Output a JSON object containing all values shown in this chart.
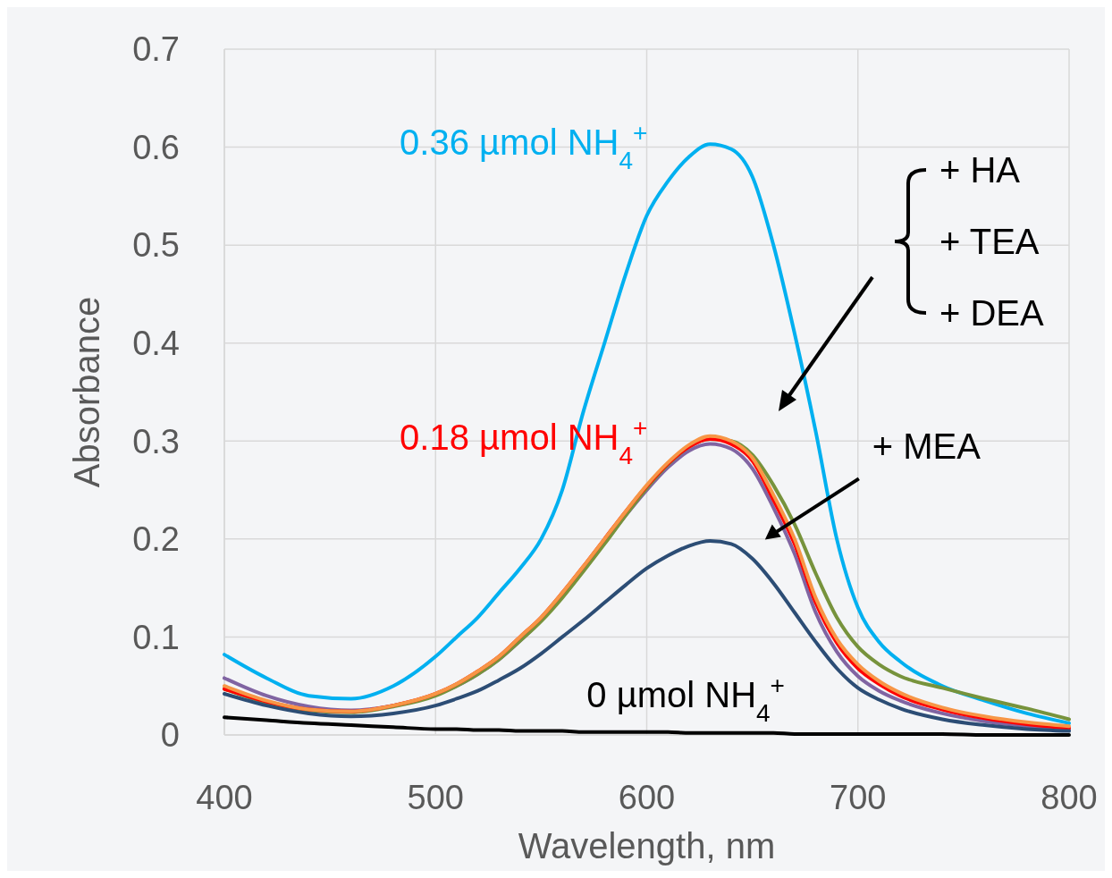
{
  "chart_data": {
    "type": "line",
    "xlabel": "Wavelength, nm",
    "ylabel": "Absorbance",
    "x": [
      400,
      420,
      440,
      460,
      480,
      500,
      510,
      520,
      530,
      540,
      550,
      560,
      570,
      580,
      590,
      600,
      610,
      620,
      630,
      640,
      650,
      660,
      670,
      680,
      690,
      700,
      710,
      720,
      740,
      760,
      780,
      800
    ],
    "series": [
      {
        "name": "0.36 µmol NH$_{4}$$^{+}$",
        "color": "#00b0f0",
        "values": [
          0.082,
          0.058,
          0.04,
          0.037,
          0.05,
          0.08,
          0.1,
          0.12,
          0.145,
          0.17,
          0.2,
          0.25,
          0.33,
          0.4,
          0.47,
          0.53,
          0.565,
          0.59,
          0.603,
          0.598,
          0.57,
          0.5,
          0.41,
          0.31,
          0.2,
          0.13,
          0.095,
          0.075,
          0.05,
          0.035,
          0.022,
          0.012
        ]
      },
      {
        "color": "#8064a2",
        "values": [
          0.058,
          0.04,
          0.029,
          0.025,
          0.03,
          0.041,
          0.05,
          0.062,
          0.077,
          0.096,
          0.117,
          0.141,
          0.168,
          0.196,
          0.224,
          0.25,
          0.273,
          0.29,
          0.297,
          0.292,
          0.272,
          0.232,
          0.185,
          0.125,
          0.085,
          0.06,
          0.045,
          0.035,
          0.022,
          0.014,
          0.009,
          0.005
        ]
      },
      {
        "color": "#77933c",
        "values": [
          0.047,
          0.033,
          0.025,
          0.023,
          0.029,
          0.04,
          0.05,
          0.062,
          0.077,
          0.096,
          0.116,
          0.14,
          0.167,
          0.195,
          0.224,
          0.252,
          0.276,
          0.294,
          0.302,
          0.3,
          0.286,
          0.255,
          0.215,
          0.165,
          0.12,
          0.09,
          0.072,
          0.06,
          0.048,
          0.037,
          0.027,
          0.016
        ]
      },
      {
        "name": "0.18 µmol NH$_{4}$$^{+}$",
        "color": "#ff0000",
        "values": [
          0.047,
          0.034,
          0.026,
          0.024,
          0.03,
          0.042,
          0.052,
          0.065,
          0.08,
          0.1,
          0.12,
          0.145,
          0.172,
          0.2,
          0.228,
          0.254,
          0.277,
          0.294,
          0.302,
          0.297,
          0.28,
          0.24,
          0.195,
          0.135,
          0.094,
          0.068,
          0.052,
          0.04,
          0.026,
          0.017,
          0.011,
          0.007
        ]
      },
      {
        "color": "#f79646",
        "values": [
          0.05,
          0.035,
          0.026,
          0.024,
          0.03,
          0.042,
          0.052,
          0.065,
          0.08,
          0.1,
          0.12,
          0.145,
          0.172,
          0.2,
          0.228,
          0.255,
          0.278,
          0.296,
          0.305,
          0.3,
          0.283,
          0.245,
          0.2,
          0.14,
          0.098,
          0.072,
          0.055,
          0.043,
          0.028,
          0.019,
          0.013,
          0.009
        ]
      },
      {
        "color": "#2c4d75",
        "values": [
          0.042,
          0.03,
          0.022,
          0.019,
          0.022,
          0.03,
          0.037,
          0.045,
          0.056,
          0.068,
          0.083,
          0.1,
          0.117,
          0.135,
          0.153,
          0.17,
          0.183,
          0.193,
          0.198,
          0.195,
          0.18,
          0.155,
          0.125,
          0.095,
          0.068,
          0.048,
          0.036,
          0.027,
          0.016,
          0.01,
          0.006,
          0.004
        ]
      },
      {
        "name": "0 µmol NH$_{4}$$^{+}$",
        "color": "#000000",
        "values": [
          0.018,
          0.015,
          0.012,
          0.01,
          0.008,
          0.006,
          0.006,
          0.005,
          0.005,
          0.004,
          0.004,
          0.004,
          0.003,
          0.003,
          0.003,
          0.003,
          0.003,
          0.002,
          0.002,
          0.002,
          0.002,
          0.002,
          0.001,
          0.001,
          0.001,
          0.001,
          0.001,
          0.001,
          0.001,
          0.0,
          0.0,
          0.0
        ]
      }
    ],
    "annotations": [
      "+ HA",
      "+ TEA",
      "+ DEA",
      "+ MEA"
    ],
    "xlim": [
      400,
      800
    ],
    "xticks": [
      400,
      500,
      600,
      700,
      800
    ],
    "ylim": [
      0,
      0.7
    ],
    "yticks": [
      0,
      0.1,
      0.2,
      0.3,
      0.4,
      0.5,
      0.6,
      0.7
    ],
    "grid": true,
    "line_style": "solid",
    "marker": "none"
  }
}
